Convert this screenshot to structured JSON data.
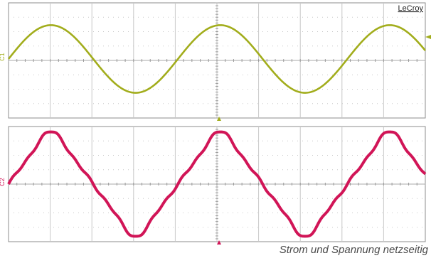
{
  "brand": "LeCroy",
  "caption": "Strom und Spannung netzseitig",
  "colors": {
    "ch1": "#a2ad1c",
    "ch2": "#d11557",
    "grid": "#c8c8c8",
    "frame": "#8c8c8c"
  },
  "chart_data": [
    {
      "type": "line",
      "name": "channel-1-trace",
      "channel_label": "C1",
      "grid": true,
      "divisions": {
        "x": 10,
        "y": 8
      },
      "ylim": [
        -4,
        4
      ],
      "cycles": 2.46,
      "amplitude_div": 2.35,
      "phase_deg": 0,
      "offset_div": 0.1,
      "distortion": false,
      "series": [
        {
          "values_desc": "sine"
        }
      ]
    },
    {
      "type": "line",
      "name": "channel-2-trace",
      "channel_label": "C2",
      "grid": true,
      "divisions": {
        "x": 10,
        "y": 8
      },
      "ylim": [
        -4,
        4
      ],
      "cycles": 2.46,
      "amplitude_div": 3.5,
      "phase_deg": 0,
      "offset_div": 0.0,
      "distortion": true,
      "series": [
        {
          "values_desc": "distorted sine"
        }
      ]
    }
  ]
}
